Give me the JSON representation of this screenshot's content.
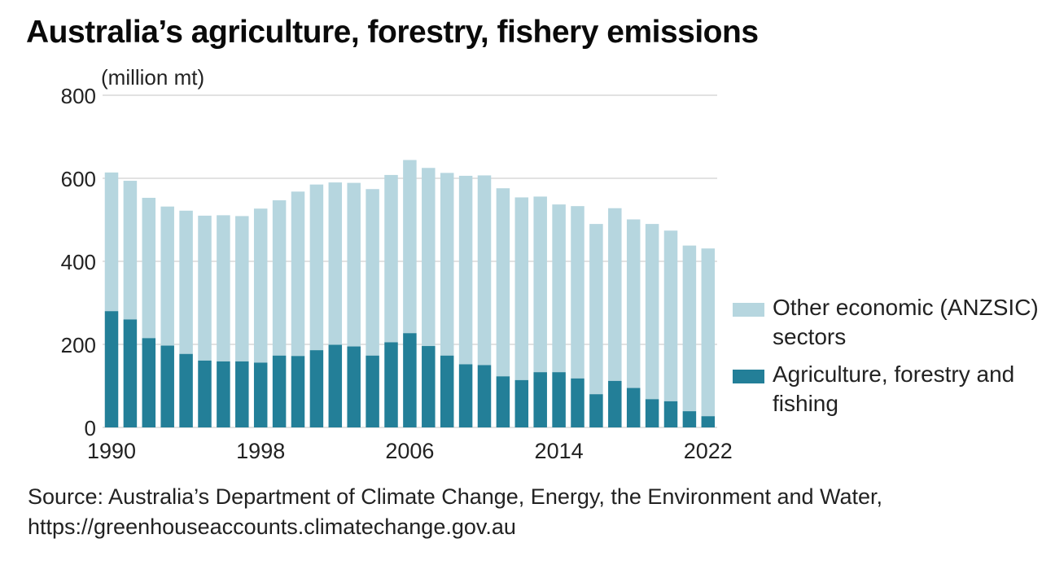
{
  "title": "Australia’s agriculture, forestry, fishery emissions",
  "source": "Source: Australia’s Department of Climate Change, Energy, the Environment and Water, https://greenhouseaccounts.climatechange.gov.au",
  "chart_data": {
    "type": "bar",
    "stacked": true,
    "title": "Australia’s agriculture, forestry, fishery emissions",
    "ylabel": "(million mt)",
    "xlabel": "",
    "ylim": [
      0,
      800
    ],
    "yticks": [
      0,
      200,
      400,
      600,
      800
    ],
    "ytick_labels": [
      "0",
      "200",
      "400",
      "600",
      "800"
    ],
    "xtick_labels": [
      "1990",
      "1998",
      "2006",
      "2014",
      "2022"
    ],
    "grid": true,
    "legend_position": "right",
    "categories": [
      "1990",
      "1991",
      "1992",
      "1993",
      "1994",
      "1995",
      "1996",
      "1997",
      "1998",
      "1999",
      "2000",
      "2001",
      "2002",
      "2003",
      "2004",
      "2005",
      "2006",
      "2007",
      "2008",
      "2009",
      "2010",
      "2011",
      "2012",
      "2013",
      "2014",
      "2015",
      "2016",
      "2017",
      "2018",
      "2019",
      "2020",
      "2021",
      "2022"
    ],
    "series": [
      {
        "name": "Agriculture, forestry and fishing",
        "color": "#237f98",
        "values": [
          280,
          260,
          215,
          197,
          177,
          161,
          159,
          159,
          156,
          173,
          172,
          186,
          199,
          195,
          173,
          205,
          227,
          196,
          173,
          152,
          150,
          123,
          114,
          133,
          133,
          118,
          80,
          112,
          95,
          68,
          63,
          39,
          27
        ]
      },
      {
        "name": "Other economic (ANZSIC) sectors",
        "color": "#b6d6df",
        "values": [
          334,
          334,
          338,
          335,
          345,
          349,
          352,
          350,
          371,
          374,
          396,
          399,
          391,
          394,
          401,
          403,
          417,
          429,
          440,
          454,
          457,
          453,
          440,
          423,
          404,
          415,
          410,
          416,
          406,
          422,
          411,
          399,
          404
        ]
      }
    ],
    "totals": [
      614,
      594,
      553,
      532,
      522,
      510,
      511,
      509,
      527,
      547,
      568,
      585,
      590,
      589,
      574,
      608,
      644,
      625,
      613,
      606,
      607,
      576,
      554,
      556,
      537,
      533,
      490,
      528,
      501,
      490,
      474,
      438,
      431
    ]
  },
  "legend": [
    {
      "label": "Other economic (ANZSIC) sectors",
      "color": "#b6d6df"
    },
    {
      "label": "Agriculture, forestry and fishing",
      "color": "#237f98"
    }
  ]
}
